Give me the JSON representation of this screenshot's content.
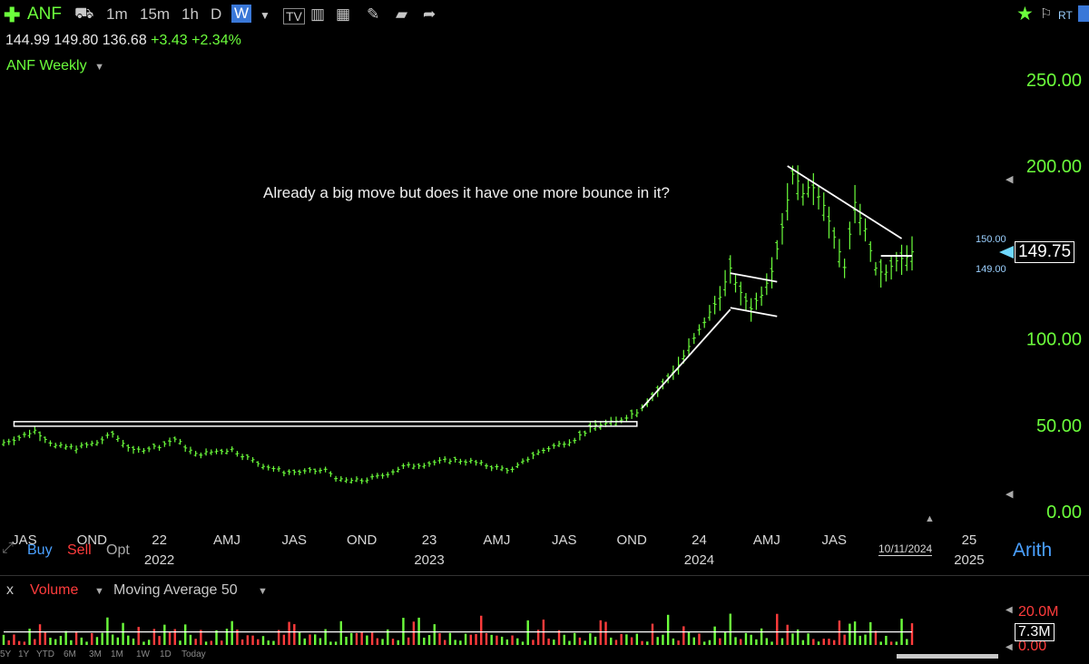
{
  "toolbar": {
    "symbol": "ANF",
    "intervals": [
      "1m",
      "15m",
      "1h",
      "D",
      "W"
    ],
    "active_interval": "W",
    "rt_label": "RT"
  },
  "ohlc": {
    "open": "144.99",
    "high": "149.80",
    "low": "136.68",
    "change": "+3.43",
    "change_pct": "+2.34%"
  },
  "chart_title": "ANF Weekly",
  "annotation": "Already a big move but does it have one more bounce in it?",
  "price_tag": "149.75",
  "bid_label": "150.00",
  "ask_label": "149.00",
  "scale_mode": "Arith",
  "trade_buttons": {
    "buy": "Buy",
    "sell": "Sell",
    "opt": "Opt"
  },
  "date_label": "10/11/2024",
  "volume_panel": {
    "close": "x",
    "label": "Volume",
    "indicator": "Moving Average 50",
    "value": "7.3M",
    "axis_top": "20.0M",
    "axis_bottom": "0.00"
  },
  "range_buttons": [
    "5Y",
    "1Y",
    "YTD",
    "6M",
    "3M",
    "1M",
    "1W",
    "1D",
    "Today"
  ],
  "colors": {
    "up": "#6cff3c",
    "down": "#ff3c3c",
    "accent": "#3a78d8"
  },
  "chart_data": {
    "type": "bar",
    "title": "ANF Weekly",
    "ylim": [
      0,
      260
    ],
    "y_ticks": [
      "250.00",
      "200.00",
      "100.00",
      "50.00",
      "0.00"
    ],
    "y_tick_values": [
      250,
      200,
      100,
      50,
      0
    ],
    "x_ticks": [
      {
        "label": "JAS",
        "week": 4
      },
      {
        "label": "OND",
        "week": 17
      },
      {
        "label": "22",
        "week": 30,
        "sub": "2022"
      },
      {
        "label": "AMJ",
        "week": 43
      },
      {
        "label": "JAS",
        "week": 56
      },
      {
        "label": "OND",
        "week": 69
      },
      {
        "label": "23",
        "week": 82,
        "sub": "2023"
      },
      {
        "label": "AMJ",
        "week": 95
      },
      {
        "label": "JAS",
        "week": 108
      },
      {
        "label": "OND",
        "week": 121
      },
      {
        "label": "24",
        "week": 134,
        "sub": "2024"
      },
      {
        "label": "AMJ",
        "week": 147
      },
      {
        "label": "JAS",
        "week": 160
      },
      {
        "label": "25",
        "week": 186,
        "sub": "2025"
      }
    ],
    "close_anchors": [
      [
        0,
        40
      ],
      [
        3,
        43
      ],
      [
        6,
        47
      ],
      [
        10,
        38
      ],
      [
        14,
        37
      ],
      [
        18,
        40
      ],
      [
        21,
        45
      ],
      [
        25,
        35
      ],
      [
        30,
        38
      ],
      [
        33,
        42
      ],
      [
        37,
        33
      ],
      [
        41,
        35
      ],
      [
        44,
        36
      ],
      [
        49,
        28
      ],
      [
        54,
        23
      ],
      [
        58,
        23
      ],
      [
        62,
        24
      ],
      [
        65,
        18
      ],
      [
        69,
        18
      ],
      [
        73,
        21
      ],
      [
        77,
        26
      ],
      [
        82,
        28
      ],
      [
        86,
        30
      ],
      [
        90,
        29
      ],
      [
        94,
        26
      ],
      [
        98,
        24
      ],
      [
        102,
        33
      ],
      [
        106,
        38
      ],
      [
        110,
        42
      ],
      [
        114,
        50
      ],
      [
        118,
        52
      ],
      [
        122,
        58
      ],
      [
        126,
        70
      ],
      [
        130,
        85
      ],
      [
        134,
        105
      ],
      [
        138,
        125
      ],
      [
        140,
        140
      ],
      [
        142,
        126
      ],
      [
        144,
        118
      ],
      [
        146,
        126
      ],
      [
        148,
        140
      ],
      [
        150,
        165
      ],
      [
        152,
        196
      ],
      [
        154,
        185
      ],
      [
        156,
        188
      ],
      [
        158,
        178
      ],
      [
        160,
        158
      ],
      [
        162,
        142
      ],
      [
        164,
        178
      ],
      [
        166,
        163
      ],
      [
        168,
        140
      ],
      [
        170,
        138
      ],
      [
        172,
        145
      ],
      [
        174,
        147
      ],
      [
        175,
        149.75
      ]
    ],
    "last_week": 175,
    "volume_m": [
      6,
      3,
      7,
      3,
      2,
      12,
      4,
      10,
      13,
      7,
      4,
      9
    ],
    "volume_ma": 6,
    "trendlines": [
      {
        "from": [
          2,
          51
        ],
        "to": [
          122,
          51
        ],
        "kind": "channel"
      },
      {
        "from": [
          123,
          60
        ],
        "to": [
          140,
          117
        ]
      },
      {
        "from": [
          140,
          138
        ],
        "to": [
          149,
          133
        ]
      },
      {
        "from": [
          140,
          118
        ],
        "to": [
          149,
          113
        ]
      },
      {
        "from": [
          151,
          200
        ],
        "to": [
          173,
          158
        ]
      },
      {
        "from": [
          169,
          148
        ],
        "to": [
          175,
          148
        ]
      }
    ]
  }
}
